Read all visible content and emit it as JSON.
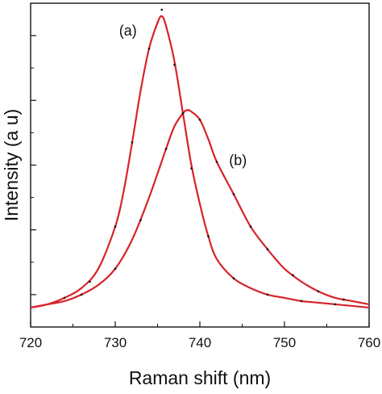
{
  "chart_data": {
    "type": "line",
    "title": "",
    "xlabel": "Raman shift (nm)",
    "ylabel": "Intensity (a u)",
    "xlim": [
      720,
      760
    ],
    "ylim": [
      0,
      1.0
    ],
    "x_ticks": [
      720,
      730,
      740,
      750,
      760
    ],
    "x_tick_labels": [
      "720",
      "730",
      "740",
      "750",
      "760"
    ],
    "y_ticks_unlabeled": [
      0.1,
      0.3,
      0.5,
      0.7,
      0.9
    ],
    "grid": false,
    "legend": "none",
    "line_color": "#d8232a",
    "marker_color": "#111111",
    "series": [
      {
        "x": [
          720,
          722,
          724,
          726,
          728,
          730,
          731,
          732,
          733,
          734,
          735,
          735.5,
          736,
          737,
          738,
          739,
          740,
          741,
          742,
          744,
          746,
          748,
          750,
          752,
          754,
          756,
          758,
          760
        ],
        "y": [
          0.06,
          0.07,
          0.09,
          0.12,
          0.18,
          0.31,
          0.42,
          0.57,
          0.73,
          0.86,
          0.94,
          0.96,
          0.93,
          0.82,
          0.66,
          0.5,
          0.38,
          0.28,
          0.21,
          0.15,
          0.12,
          0.1,
          0.09,
          0.08,
          0.075,
          0.07,
          0.065,
          0.06
        ],
        "markers": [
          [
            724,
            0.09
          ],
          [
            727,
            0.14
          ],
          [
            730,
            0.31
          ],
          [
            732,
            0.57
          ],
          [
            734,
            0.86
          ],
          [
            735.5,
            0.98
          ],
          [
            737,
            0.81
          ],
          [
            739,
            0.49
          ],
          [
            741,
            0.28
          ],
          [
            744,
            0.15
          ],
          [
            748,
            0.1
          ],
          [
            752,
            0.08
          ],
          [
            756,
            0.07
          ]
        ]
      },
      {
        "x": [
          720,
          722,
          724,
          726,
          728,
          730,
          732,
          734,
          736,
          737,
          738,
          738.5,
          739,
          740,
          741,
          742,
          744,
          746,
          748,
          750,
          752,
          754,
          756,
          758,
          760
        ],
        "y": [
          0.06,
          0.07,
          0.08,
          0.1,
          0.13,
          0.18,
          0.27,
          0.4,
          0.55,
          0.62,
          0.66,
          0.67,
          0.665,
          0.64,
          0.58,
          0.51,
          0.41,
          0.31,
          0.24,
          0.18,
          0.14,
          0.11,
          0.09,
          0.08,
          0.07
        ],
        "markers": [
          [
            726,
            0.1
          ],
          [
            730,
            0.18
          ],
          [
            733,
            0.33
          ],
          [
            736,
            0.55
          ],
          [
            738,
            0.66
          ],
          [
            740,
            0.64
          ],
          [
            742,
            0.51
          ],
          [
            744,
            0.41
          ],
          [
            746,
            0.31
          ],
          [
            748,
            0.24
          ],
          [
            751,
            0.16
          ],
          [
            754,
            0.11
          ],
          [
            757,
            0.085
          ]
        ]
      }
    ],
    "annotations": [
      {
        "text": "(a)",
        "x": 731.5,
        "y": 0.9
      },
      {
        "text": "(b)",
        "x": 744.5,
        "y": 0.5
      }
    ]
  }
}
